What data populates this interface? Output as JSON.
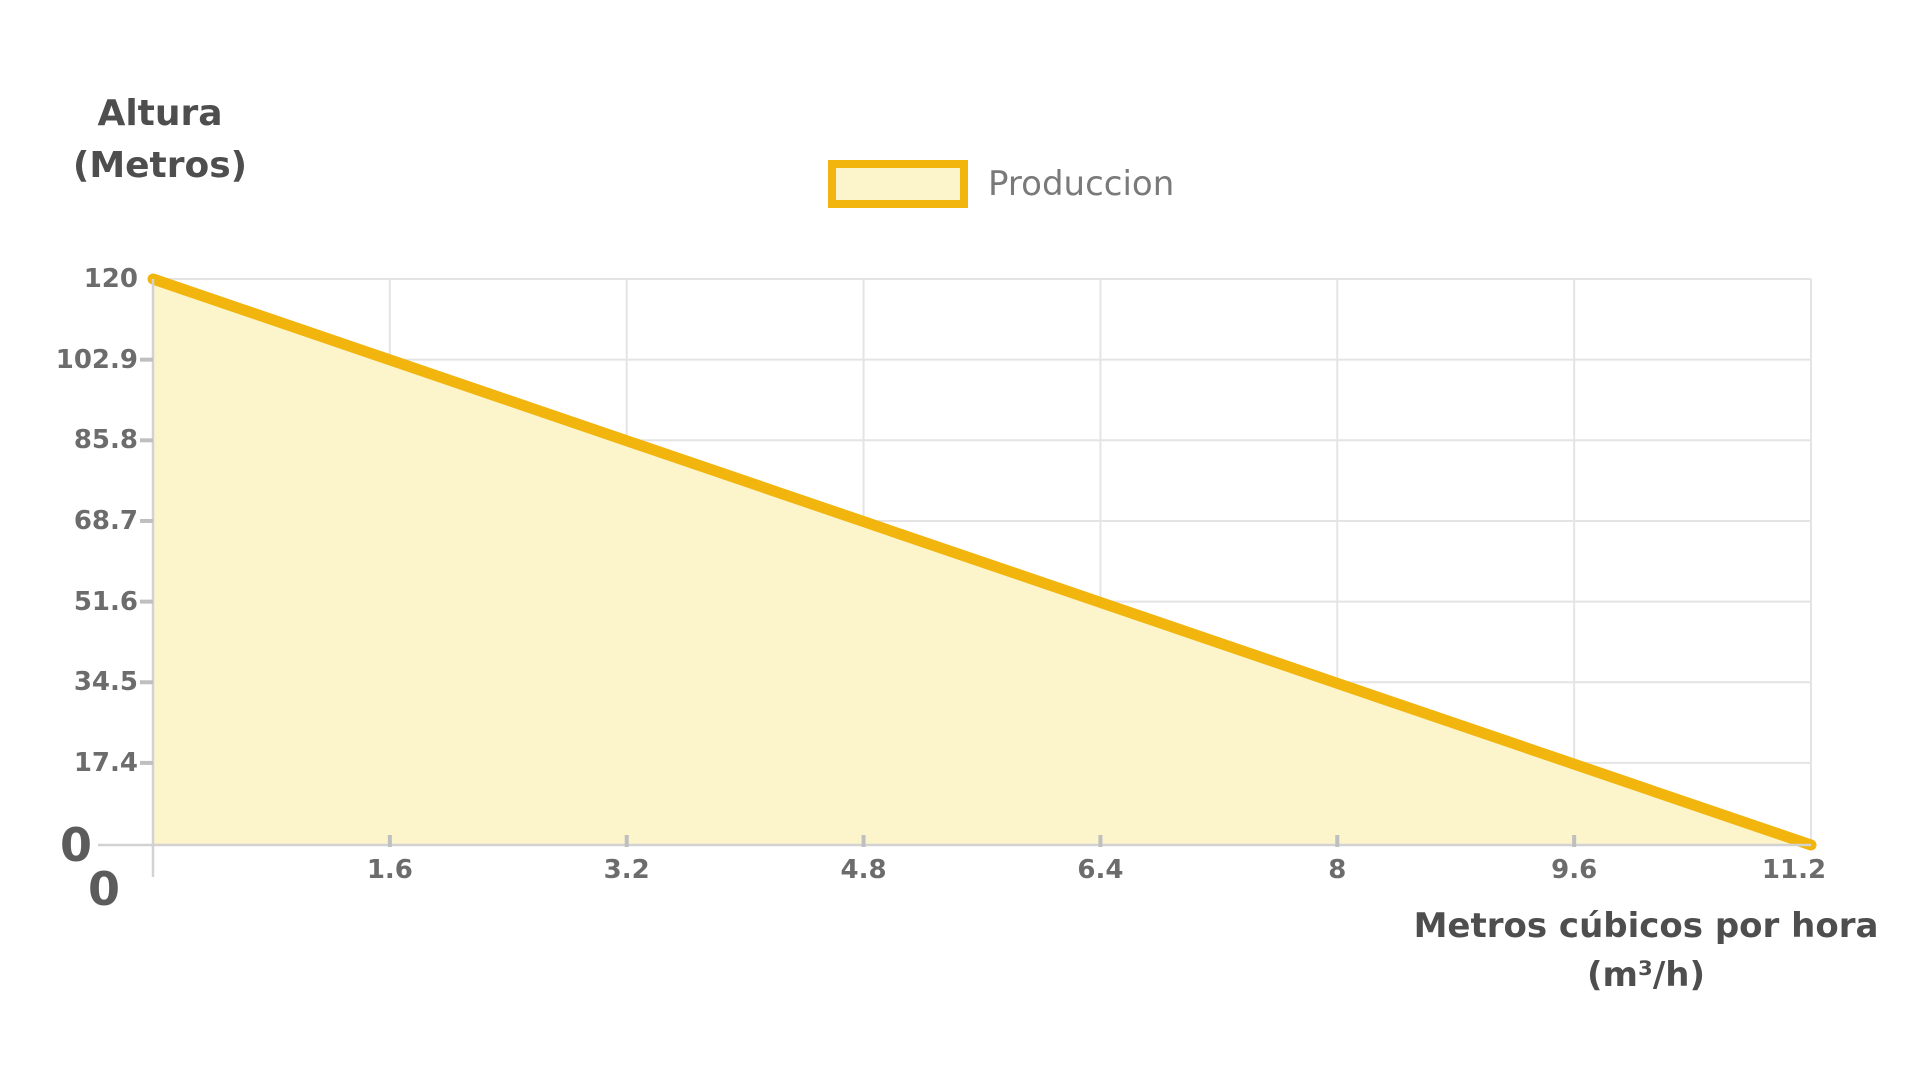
{
  "y_axis_title": {
    "line1": "Altura",
    "line2": "(Metros)"
  },
  "x_axis_title": {
    "line1": "Metros cúbicos por hora",
    "line2": "(m³/h)"
  },
  "legend": {
    "label": "Produccion"
  },
  "chart_data": {
    "type": "area",
    "title": "",
    "xlabel": "Metros cúbicos por hora (m³/h)",
    "ylabel": "Altura (Metros)",
    "legend_position": "top",
    "grid": true,
    "x_range": [
      0,
      11.2
    ],
    "y_range": [
      0,
      120
    ],
    "x_ticks": [
      {
        "value": 0,
        "label": "0"
      },
      {
        "value": 1.6,
        "label": "1.6"
      },
      {
        "value": 3.2,
        "label": "3.2"
      },
      {
        "value": 4.8,
        "label": "4.8"
      },
      {
        "value": 6.4,
        "label": "6.4"
      },
      {
        "value": 8,
        "label": "8"
      },
      {
        "value": 9.6,
        "label": "9.6"
      },
      {
        "value": 11.2,
        "label": "11.2"
      }
    ],
    "y_ticks": [
      {
        "value": 0,
        "label": "0"
      },
      {
        "value": 17.4,
        "label": "17.4"
      },
      {
        "value": 34.5,
        "label": "34.5"
      },
      {
        "value": 51.6,
        "label": "51.6"
      },
      {
        "value": 68.7,
        "label": "68.7"
      },
      {
        "value": 85.8,
        "label": "85.8"
      },
      {
        "value": 102.9,
        "label": "102.9"
      },
      {
        "value": 120,
        "label": "120"
      }
    ],
    "series": [
      {
        "name": "Produccion",
        "points": [
          {
            "x": 0,
            "y": 120
          },
          {
            "x": 11.2,
            "y": 0
          }
        ]
      }
    ],
    "colors": {
      "line": "#F2B50D",
      "fill": "#FCF4CB",
      "grid": "#E4E4E4",
      "axis": "#D2D2D2",
      "tick_mark": "#BFBFBF",
      "tick_text": "#6C6C6C",
      "big_zero_text": "#5C5C5C",
      "title_text": "#4E4E4E",
      "legend_text": "#7A7A7A"
    }
  }
}
